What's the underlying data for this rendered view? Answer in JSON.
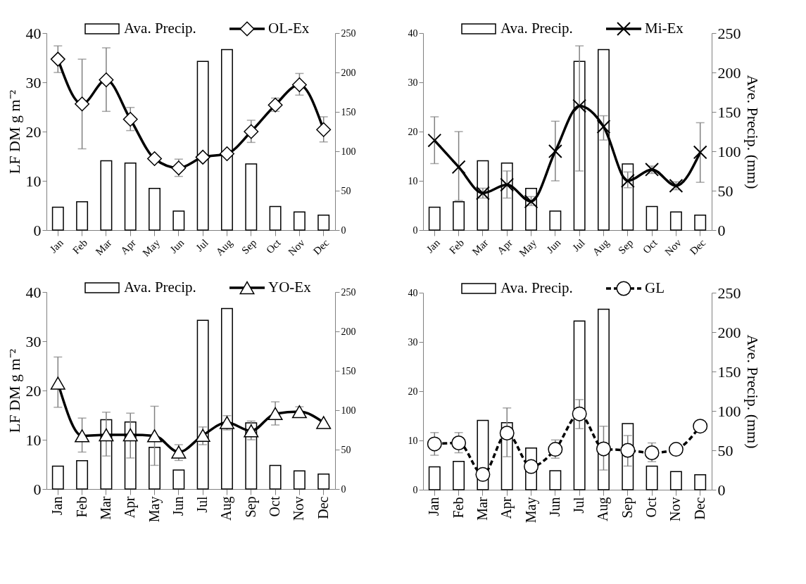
{
  "chart_data": [
    {
      "type": "bar",
      "ylabel": "LF DM g m⁻²",
      "categories": [
        "Jan",
        "Feb",
        "Mar",
        "Apr",
        "May",
        "Jun",
        "Jul",
        "Aug",
        "Sep",
        "Oct",
        "Nov",
        "Dec"
      ],
      "ylim": [
        0,
        40
      ],
      "yticks": [
        0,
        10,
        20,
        30,
        40
      ],
      "y2lim": [
        0,
        250
      ],
      "y2ticks": [
        0,
        50,
        100,
        150,
        200,
        250
      ],
      "legend": "top",
      "series": [
        {
          "name": "Ava. Precip.",
          "type": "bar",
          "axis": "y2",
          "color": "#ffffff",
          "values": [
            29,
            36,
            88,
            85,
            53,
            24,
            214,
            229,
            84,
            30,
            23,
            19
          ]
        },
        {
          "name": "OL-Ex",
          "type": "line",
          "color": "#000000",
          "marker": "diamond",
          "line_style": "solid",
          "values": [
            34.7,
            25.6,
            30.5,
            22.5,
            14.5,
            12.6,
            14.8,
            15.5,
            20,
            25.4,
            29.5,
            20.4
          ],
          "errors": [
            [
              32,
              37.4
            ],
            [
              16.5,
              34.7
            ],
            [
              24.1,
              37
            ],
            [
              20.2,
              24.9
            ],
            null,
            [
              10.9,
              14.4
            ],
            null,
            null,
            [
              17.8,
              22.3
            ],
            [
              24.1,
              26.8
            ],
            [
              27.4,
              31.8
            ],
            [
              17.9,
              23
            ]
          ]
        }
      ]
    },
    {
      "type": "bar",
      "y2label": "Ave. Precip. (mm)",
      "categories": [
        "Jan",
        "Feb",
        "Mar",
        "Apr",
        "May",
        "Jun",
        "Jul",
        "Aug",
        "Sep",
        "Oct",
        "Nov",
        "Dec"
      ],
      "ylim": [
        0,
        40
      ],
      "yticks": [
        0,
        10,
        20,
        30,
        40
      ],
      "y2lim": [
        0,
        250
      ],
      "y2ticks": [
        0,
        50,
        100,
        150,
        200,
        250
      ],
      "legend": "top",
      "series": [
        {
          "name": "Ava. Precip.",
          "type": "bar",
          "axis": "y2",
          "color": "#ffffff",
          "values": [
            29,
            36,
            88,
            85,
            53,
            24,
            214,
            229,
            84,
            30,
            23,
            19
          ]
        },
        {
          "name": "Mi-Ex",
          "type": "line",
          "color": "#000000",
          "marker": "cross",
          "line_style": "solid",
          "values": [
            18.2,
            12.8,
            7.5,
            9.2,
            5.8,
            16,
            25.2,
            21,
            10,
            12.3,
            9,
            15.8
          ],
          "errors": [
            [
              13.5,
              23
            ],
            [
              6,
              20
            ],
            [
              6.5,
              8.5
            ],
            [
              6.5,
              12
            ],
            [
              5,
              6.8
            ],
            [
              10,
              22.1
            ],
            [
              12,
              37.4
            ],
            [
              18.3,
              23.2
            ],
            [
              8.6,
              11.8
            ],
            [
              11.5,
              13
            ],
            [
              8.2,
              9.8
            ],
            [
              9.7,
              21.8
            ]
          ]
        }
      ]
    },
    {
      "type": "bar",
      "ylabel": "LF DM g m⁻²",
      "categories": [
        "Jan",
        "Feb",
        "Mar",
        "Apr",
        "May",
        "Jun",
        "Jul",
        "Aug",
        "Sep",
        "Oct",
        "Nov",
        "Dec"
      ],
      "ylim": [
        0,
        40
      ],
      "yticks": [
        0,
        10,
        20,
        30,
        40
      ],
      "y2lim": [
        0,
        250
      ],
      "y2ticks": [
        0,
        50,
        100,
        150,
        200,
        250
      ],
      "legend": "top",
      "series": [
        {
          "name": "Ava. Precip.",
          "type": "bar",
          "axis": "y2",
          "color": "#ffffff",
          "values": [
            29,
            36,
            88,
            85,
            53,
            24,
            214,
            229,
            84,
            30,
            23,
            19
          ]
        },
        {
          "name": "YO-Ex",
          "type": "line",
          "color": "#000000",
          "marker": "triangle",
          "line_style": "solid",
          "values": [
            21.5,
            10.8,
            11,
            11,
            10.8,
            7.5,
            10.9,
            13.5,
            11.8,
            15.3,
            15.7,
            13.5
          ],
          "errors": [
            [
              16.6,
              26.8
            ],
            [
              7.5,
              14.4
            ],
            [
              6.7,
              15.6
            ],
            [
              6.3,
              15.4
            ],
            [
              4.8,
              16.8
            ],
            [
              5.8,
              9
            ],
            [
              9,
              12.6
            ],
            [
              12,
              14.9
            ],
            [
              10,
              13.8
            ],
            [
              13,
              17.7
            ],
            [
              15.7,
              16.7
            ],
            null
          ]
        }
      ]
    },
    {
      "type": "bar",
      "y2label": "Ave. Precip. (mm)",
      "categories": [
        "Jan",
        "Feb",
        "Mar",
        "Apr",
        "May",
        "Jun",
        "Jul",
        "Aug",
        "Sep",
        "Oct",
        "Nov",
        "Dec"
      ],
      "ylim": [
        0,
        40
      ],
      "yticks": [
        0,
        10,
        20,
        30,
        40
      ],
      "y2lim": [
        0,
        250
      ],
      "y2ticks": [
        0,
        50,
        100,
        150,
        200,
        250
      ],
      "legend": "top",
      "series": [
        {
          "name": "Ava. Precip.",
          "type": "bar",
          "axis": "y2",
          "color": "#ffffff",
          "values": [
            29,
            36,
            88,
            85,
            53,
            24,
            214,
            229,
            84,
            30,
            23,
            19
          ]
        },
        {
          "name": "GL",
          "type": "line",
          "color": "#000000",
          "marker": "circle",
          "line_style": "dashed",
          "values": [
            9.3,
            9.5,
            3.1,
            11.5,
            4.7,
            8.2,
            15.4,
            8.3,
            8,
            7.5,
            8.2,
            12.9
          ],
          "errors": [
            [
              7,
              11.6
            ],
            [
              7.5,
              11.6
            ],
            null,
            [
              6.7,
              16.6
            ],
            null,
            [
              6.4,
              10.1
            ],
            [
              12.4,
              18.3
            ],
            [
              4,
              12.9
            ],
            [
              4.8,
              11
            ],
            [
              5.7,
              9.5
            ],
            null,
            null
          ]
        }
      ]
    }
  ]
}
